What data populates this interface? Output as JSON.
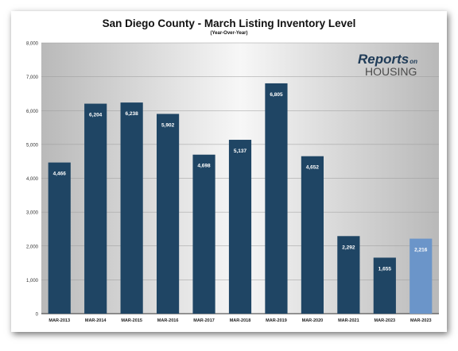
{
  "chart_data": {
    "type": "bar",
    "title": "San Diego County - March Listing Inventory Level",
    "subtitle": "(Year-Over-Year)",
    "categories": [
      "MAR-2013",
      "MAR-2014",
      "MAR-2015",
      "MAR-2016",
      "MAR-2017",
      "MAR-2018",
      "MAR-2019",
      "MAR-2020",
      "MAR-2021",
      "MAR-2023",
      "MAR-2023"
    ],
    "values": [
      4466,
      6204,
      6238,
      5902,
      4698,
      5137,
      6805,
      4652,
      2292,
      1655,
      2216
    ],
    "value_labels": [
      "4,466",
      "6,204",
      "6,238",
      "5,902",
      "4,698",
      "5,137",
      "6,805",
      "4,652",
      "2,292",
      "1,655",
      "2,216"
    ],
    "ylim": [
      0,
      8000
    ],
    "yticks": [
      0,
      1000,
      2000,
      3000,
      4000,
      5000,
      6000,
      7000,
      8000
    ],
    "ytick_labels": [
      "0",
      "1,000",
      "2,000",
      "3,000",
      "4,000",
      "5,000",
      "6,000",
      "7,000",
      "8,000"
    ],
    "grid": true,
    "legend": "none",
    "colors": {
      "bar": "#1f4564",
      "highlight_bar": "#6b95c9",
      "highlight_index": 10
    }
  },
  "logo": {
    "text_line1": "Reports",
    "text_line1_small": "on",
    "text_line2": "HOUSING"
  }
}
